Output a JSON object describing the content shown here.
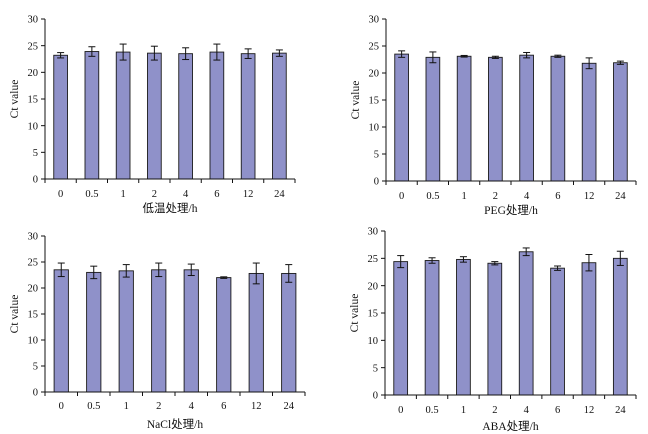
{
  "chart_data": [
    {
      "type": "bar",
      "categories": [
        "0",
        "0.5",
        "1",
        "2",
        "4",
        "6",
        "12",
        "24"
      ],
      "values": [
        23.2,
        23.9,
        23.8,
        23.6,
        23.5,
        23.8,
        23.5,
        23.6
      ],
      "errors": [
        0.5,
        0.9,
        1.5,
        1.3,
        1.1,
        1.5,
        0.9,
        0.6
      ],
      "xlabel": "低温处理/h",
      "ylabel": "Ct value",
      "ylim": [
        0,
        30
      ],
      "yticks": [
        0,
        5,
        10,
        15,
        20,
        25,
        30
      ],
      "bar_color": "#8f91c9"
    },
    {
      "type": "bar",
      "categories": [
        "0",
        "0.5",
        "1",
        "2",
        "4",
        "6",
        "12",
        "24"
      ],
      "values": [
        23.5,
        22.9,
        23.1,
        22.9,
        23.3,
        23.1,
        21.8,
        21.9
      ],
      "errors": [
        0.6,
        1.0,
        0.15,
        0.2,
        0.5,
        0.2,
        1.0,
        0.3
      ],
      "xlabel": "PEG处理/h",
      "ylabel": "Ct value",
      "ylim": [
        0,
        30
      ],
      "yticks": [
        0,
        5,
        10,
        15,
        20,
        25,
        30
      ],
      "bar_color": "#8f91c9"
    },
    {
      "type": "bar",
      "categories": [
        "0",
        "0.5",
        "1",
        "2",
        "4",
        "6",
        "12",
        "24"
      ],
      "values": [
        23.5,
        23.0,
        23.3,
        23.5,
        23.5,
        22.0,
        22.8,
        22.8
      ],
      "errors": [
        1.3,
        1.2,
        1.2,
        1.3,
        1.1,
        0.15,
        2.0,
        1.7
      ],
      "xlabel": "NaCl处理/h",
      "ylabel": "Ct value",
      "ylim": [
        0,
        30
      ],
      "yticks": [
        0,
        5,
        10,
        15,
        20,
        25,
        30
      ],
      "bar_color": "#8f91c9"
    },
    {
      "type": "bar",
      "categories": [
        "0",
        "0.5",
        "1",
        "2",
        "4",
        "6",
        "12",
        "24"
      ],
      "values": [
        24.4,
        24.6,
        24.8,
        24.1,
        26.2,
        23.2,
        24.2,
        25.0
      ],
      "errors": [
        1.1,
        0.5,
        0.5,
        0.3,
        0.7,
        0.4,
        1.5,
        1.3
      ],
      "xlabel": "ABA处理/h",
      "ylabel": "Ct value",
      "ylim": [
        0,
        30
      ],
      "yticks": [
        0,
        5,
        10,
        15,
        20,
        25,
        30
      ],
      "bar_color": "#8f91c9"
    }
  ]
}
